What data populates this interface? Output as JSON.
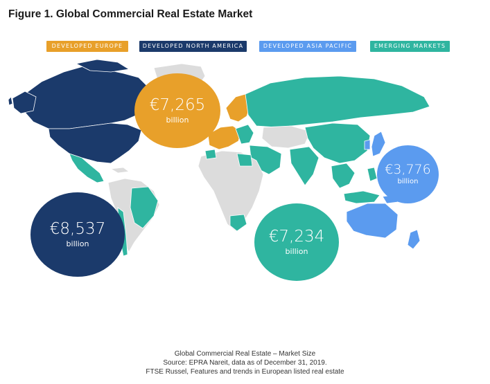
{
  "title": "Figure 1. Global Commercial Real Estate Market",
  "legend": [
    {
      "label": "DEVELOPED EUROPE",
      "color": "#E8A02A"
    },
    {
      "label": "DEVELOPED NORTH AMERICA",
      "color": "#1B3A6B"
    },
    {
      "label": "DEVELOPED ASIA PACIFIC",
      "color": "#5B9BEF"
    },
    {
      "label": "EMERGING MARKETS",
      "color": "#2FB5A0"
    }
  ],
  "bubbles": {
    "north_america": {
      "value": "€8,537",
      "unit": "billion",
      "color": "#1B3A6B"
    },
    "europe": {
      "value": "€7,265",
      "unit": "billion",
      "color": "#E8A02A"
    },
    "emerging": {
      "value": "€7,234",
      "unit": "billion",
      "color": "#2FB5A0"
    },
    "asia_pacific": {
      "value": "€3,776",
      "unit": "billion",
      "color": "#5B9BEF"
    }
  },
  "map_colors": {
    "other": "#DCDCDC",
    "north_america": "#1B3A6B",
    "europe": "#E8A02A",
    "emerging": "#2FB5A0",
    "asia_pacific": "#5B9BEF"
  },
  "caption": {
    "line1": "Global Commercial Real Estate – Market Size",
    "line2": "Source: EPRA Nareit, data as of December 31, 2019.",
    "line3": "FTSE Russel, Features and trends in European listed real estate"
  }
}
